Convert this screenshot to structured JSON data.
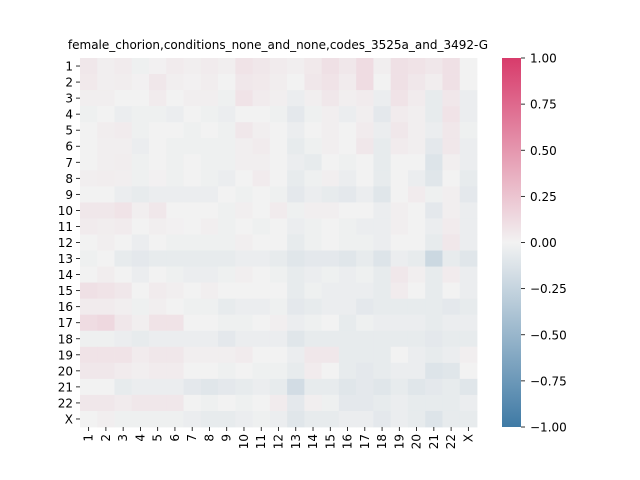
{
  "chart_data": {
    "type": "heatmap",
    "title": "female_chorion,conditions_none_and_none,codes_3525a_and_3492-G",
    "xlabel": "",
    "ylabel": "",
    "labels": [
      "1",
      "2",
      "3",
      "4",
      "5",
      "6",
      "7",
      "8",
      "9",
      "10",
      "11",
      "12",
      "13",
      "14",
      "15",
      "16",
      "17",
      "18",
      "19",
      "20",
      "21",
      "22",
      "X"
    ],
    "vmin": -1.0,
    "vmax": 1.0,
    "colorbar_ticks": [
      1.0,
      0.75,
      0.5,
      0.25,
      0.0,
      -0.25,
      -0.5,
      -0.75,
      -1.0
    ],
    "colorbar_tick_labels": [
      "1.00",
      "0.75",
      "0.50",
      "0.25",
      "0.00",
      "−0.25",
      "−0.50",
      "−0.75",
      "−1.00"
    ],
    "colormap": {
      "low": "#3f7aa5",
      "mid": "#f2f2f2",
      "high": "#d83b6b"
    },
    "values": [
      [
        0.06,
        0.02,
        0.04,
        -0.02,
        0.01,
        0.04,
        0.02,
        0.04,
        0.02,
        0.08,
        0.06,
        0.04,
        0.02,
        0.05,
        0.1,
        0.06,
        0.12,
        0.02,
        0.1,
        0.08,
        0.06,
        0.1,
        0.0
      ],
      [
        0.05,
        0.02,
        0.03,
        0.01,
        0.06,
        0.02,
        0.01,
        0.03,
        0.0,
        0.06,
        0.05,
        0.03,
        0.0,
        0.06,
        0.08,
        0.04,
        0.12,
        0.0,
        0.1,
        0.06,
        0.03,
        0.1,
        0.0
      ],
      [
        0.02,
        0.02,
        0.0,
        0.0,
        0.04,
        0.0,
        0.02,
        0.02,
        -0.02,
        0.08,
        0.04,
        0.02,
        -0.04,
        0.02,
        0.06,
        0.02,
        0.04,
        -0.04,
        0.08,
        0.04,
        -0.06,
        0.06,
        -0.04
      ],
      [
        -0.02,
        0.0,
        -0.04,
        -0.02,
        -0.02,
        -0.04,
        0.0,
        -0.02,
        -0.04,
        0.0,
        0.0,
        -0.02,
        -0.08,
        -0.02,
        0.02,
        -0.04,
        0.02,
        -0.08,
        0.04,
        0.02,
        -0.06,
        0.08,
        -0.04
      ],
      [
        0.0,
        0.03,
        0.04,
        -0.02,
        0.0,
        0.0,
        -0.02,
        0.0,
        -0.02,
        0.06,
        0.02,
        0.0,
        -0.04,
        0.0,
        0.02,
        0.0,
        0.04,
        -0.04,
        0.06,
        0.02,
        -0.04,
        0.06,
        -0.02
      ],
      [
        0.0,
        0.02,
        0.02,
        -0.04,
        0.0,
        -0.02,
        -0.02,
        -0.02,
        -0.02,
        0.02,
        0.04,
        0.0,
        -0.06,
        -0.02,
        0.02,
        0.0,
        0.06,
        -0.06,
        0.04,
        0.02,
        -0.08,
        0.06,
        -0.04
      ],
      [
        0.0,
        0.02,
        0.03,
        -0.02,
        0.0,
        -0.02,
        0.0,
        -0.02,
        -0.02,
        0.02,
        0.02,
        0.0,
        -0.04,
        -0.06,
        0.0,
        -0.02,
        0.0,
        -0.06,
        0.0,
        0.0,
        -0.12,
        0.02,
        -0.04
      ],
      [
        0.02,
        0.03,
        0.02,
        -0.02,
        0.01,
        -0.02,
        0.0,
        -0.02,
        -0.04,
        0.0,
        0.04,
        0.0,
        -0.06,
        -0.02,
        0.02,
        -0.04,
        0.0,
        -0.06,
        0.0,
        -0.04,
        -0.1,
        0.0,
        -0.06
      ],
      [
        0.0,
        0.0,
        -0.04,
        -0.06,
        -0.04,
        -0.04,
        -0.04,
        -0.04,
        0.0,
        -0.02,
        0.0,
        -0.02,
        -0.08,
        -0.04,
        -0.06,
        -0.08,
        -0.04,
        -0.1,
        0.0,
        0.04,
        -0.02,
        0.02,
        -0.08
      ],
      [
        0.06,
        0.06,
        0.08,
        0.02,
        0.06,
        0.0,
        0.0,
        0.0,
        -0.02,
        0.02,
        0.0,
        0.04,
        -0.02,
        0.02,
        0.02,
        0.0,
        0.0,
        -0.04,
        0.02,
        0.0,
        -0.08,
        0.02,
        -0.04
      ],
      [
        0.04,
        0.03,
        0.04,
        0.0,
        0.02,
        0.01,
        0.0,
        0.02,
        -0.02,
        0.0,
        -0.02,
        0.0,
        -0.04,
        -0.02,
        0.0,
        -0.02,
        -0.04,
        -0.04,
        0.02,
        0.0,
        -0.04,
        0.04,
        -0.04
      ],
      [
        0.0,
        0.02,
        0.0,
        -0.04,
        0.0,
        -0.02,
        -0.02,
        -0.02,
        -0.02,
        0.02,
        0.0,
        0.0,
        -0.06,
        -0.02,
        0.0,
        -0.02,
        -0.02,
        -0.04,
        0.0,
        0.0,
        -0.06,
        0.06,
        -0.04
      ],
      [
        -0.02,
        0.0,
        -0.06,
        -0.08,
        -0.06,
        -0.06,
        -0.06,
        -0.06,
        -0.06,
        -0.04,
        -0.04,
        -0.06,
        -0.1,
        -0.08,
        -0.08,
        -0.1,
        -0.06,
        -0.12,
        -0.04,
        -0.06,
        -0.22,
        -0.06,
        -0.1
      ],
      [
        0.0,
        0.03,
        0.0,
        -0.04,
        0.0,
        -0.02,
        -0.04,
        -0.04,
        -0.02,
        0.02,
        0.0,
        -0.02,
        -0.06,
        -0.04,
        -0.02,
        -0.04,
        -0.02,
        -0.06,
        0.06,
        0.02,
        -0.06,
        0.04,
        -0.04
      ],
      [
        0.1,
        0.08,
        0.06,
        0.0,
        0.04,
        0.02,
        0.0,
        0.02,
        0.0,
        0.0,
        0.0,
        0.0,
        -0.06,
        -0.02,
        -0.04,
        -0.04,
        -0.04,
        -0.06,
        0.04,
        0.0,
        -0.06,
        0.0,
        -0.04
      ],
      [
        0.04,
        0.04,
        0.02,
        -0.02,
        0.02,
        0.0,
        -0.02,
        -0.02,
        -0.06,
        -0.04,
        -0.04,
        -0.02,
        -0.08,
        -0.06,
        -0.04,
        -0.04,
        -0.08,
        -0.06,
        -0.06,
        -0.06,
        -0.06,
        -0.08,
        -0.06
      ],
      [
        0.12,
        0.14,
        0.06,
        0.02,
        0.08,
        0.08,
        0.0,
        0.0,
        -0.02,
        -0.02,
        0.0,
        0.02,
        -0.04,
        -0.02,
        0.0,
        -0.06,
        -0.02,
        -0.04,
        -0.04,
        -0.04,
        -0.06,
        -0.04,
        -0.04
      ],
      [
        -0.02,
        -0.02,
        -0.04,
        -0.06,
        -0.04,
        -0.04,
        -0.04,
        -0.04,
        -0.08,
        -0.04,
        -0.04,
        -0.04,
        -0.1,
        -0.06,
        -0.06,
        -0.06,
        -0.06,
        -0.06,
        -0.06,
        -0.06,
        -0.08,
        -0.06,
        -0.06
      ],
      [
        0.08,
        0.08,
        0.08,
        0.04,
        0.06,
        0.06,
        0.02,
        0.02,
        0.02,
        0.04,
        0.0,
        0.0,
        -0.04,
        0.06,
        0.06,
        -0.06,
        -0.06,
        -0.06,
        0.0,
        -0.04,
        -0.06,
        -0.04,
        0.02
      ],
      [
        0.06,
        0.06,
        0.04,
        0.02,
        0.04,
        0.04,
        0.0,
        0.0,
        -0.02,
        0.0,
        -0.02,
        -0.02,
        -0.06,
        0.04,
        0.0,
        -0.06,
        -0.08,
        -0.06,
        -0.04,
        -0.04,
        -0.12,
        -0.1,
        0.0
      ],
      [
        0.0,
        0.0,
        -0.06,
        -0.04,
        -0.04,
        -0.04,
        -0.08,
        -0.1,
        -0.08,
        -0.06,
        -0.04,
        -0.06,
        -0.18,
        -0.06,
        -0.06,
        -0.1,
        -0.08,
        -0.1,
        -0.06,
        -0.1,
        -0.08,
        -0.06,
        -0.1
      ],
      [
        0.06,
        0.06,
        0.04,
        0.06,
        0.06,
        0.06,
        0.0,
        -0.02,
        0.0,
        -0.02,
        0.0,
        0.04,
        -0.08,
        0.02,
        -0.02,
        -0.08,
        -0.08,
        -0.06,
        -0.04,
        -0.06,
        -0.06,
        -0.06,
        -0.04
      ],
      [
        0.0,
        0.02,
        -0.02,
        -0.02,
        -0.02,
        -0.02,
        -0.04,
        -0.06,
        -0.06,
        -0.04,
        -0.02,
        -0.04,
        -0.1,
        -0.06,
        -0.06,
        -0.04,
        -0.04,
        -0.08,
        -0.04,
        -0.06,
        -0.12,
        -0.06,
        -0.06
      ]
    ]
  }
}
